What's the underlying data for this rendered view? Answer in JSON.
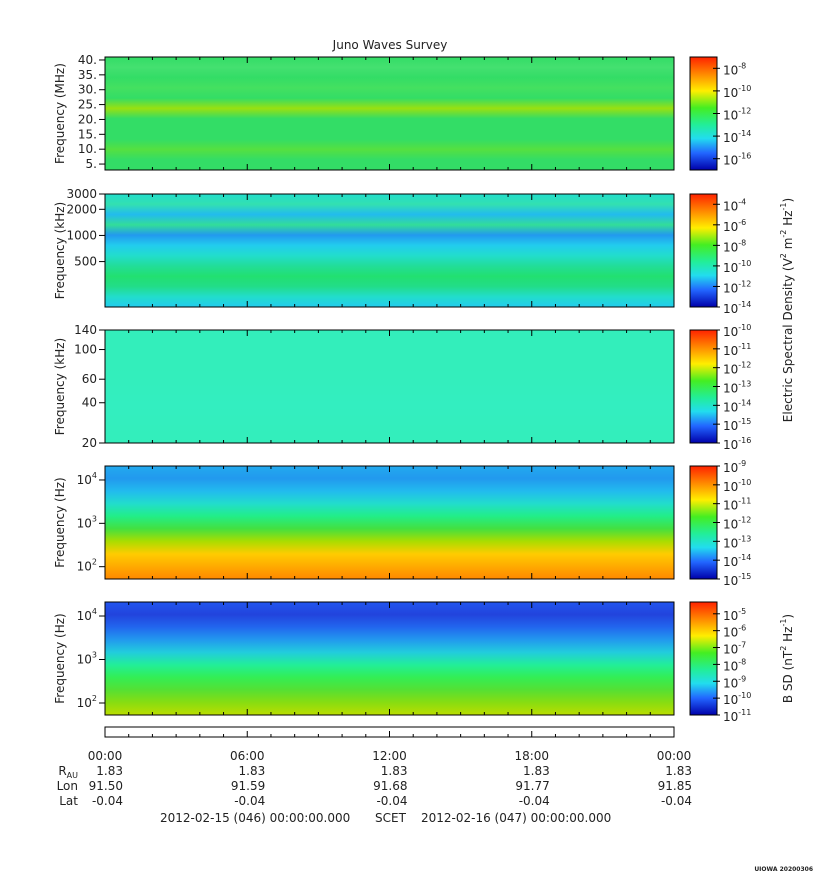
{
  "title": "Juno Waves Survey",
  "chart_data": [
    {
      "type": "spectrogram",
      "ylabel": "Frequency (MHz)",
      "ylim": [
        3,
        41
      ],
      "log": false,
      "yticks": [
        {
          "value": 5,
          "label": "5."
        },
        {
          "value": 10,
          "label": "10."
        },
        {
          "value": 15,
          "label": "15."
        },
        {
          "value": 20,
          "label": "20."
        },
        {
          "value": 25,
          "label": "25."
        },
        {
          "value": 30,
          "label": "30."
        },
        {
          "value": 35,
          "label": "35."
        },
        {
          "value": 40,
          "label": "40."
        }
      ],
      "colors": [
        "#33dd66",
        "#44e070",
        "#33dd66",
        "#44e060",
        "#33dd66",
        "#99e010",
        "#33dd66",
        "#33dd66",
        "#33dd66",
        "#55e040",
        "#33dd66",
        "#33dd66"
      ],
      "clim": [
        1e-17,
        1e-07
      ],
      "cticks": [
        {
          "value": 1e-08,
          "label": "10^-8"
        },
        {
          "value": 1e-10,
          "label": "10^-10"
        },
        {
          "value": 1e-12,
          "label": "10^-12"
        },
        {
          "value": 1e-14,
          "label": "10^-14"
        },
        {
          "value": 1e-16,
          "label": "10^-16"
        }
      ]
    },
    {
      "type": "spectrogram",
      "ylabel": "Frequency (kHz)",
      "ylim": [
        150,
        3000
      ],
      "log": true,
      "yticks": [
        {
          "value": 3000,
          "label": "3000"
        },
        {
          "value": 2000,
          "label": "2000"
        },
        {
          "value": 1000,
          "label": "1000"
        },
        500
      ],
      "colors": [
        "#22ddcc",
        "#33e0b0",
        "#22bbee",
        "#33dd99",
        "#2299ee",
        "#22ccee",
        "#22ddcc",
        "#22dd99",
        "#22e070",
        "#22dd88",
        "#22ddcc",
        "#22ccee"
      ],
      "clim": [
        1e-14,
        0.001
      ],
      "cticks": [
        {
          "value": 0.0001,
          "label": "10^-4"
        },
        {
          "value": 1e-06,
          "label": "10^-6"
        },
        {
          "value": 1e-08,
          "label": "10^-8"
        },
        {
          "value": 1e-10,
          "label": "10^-10"
        },
        {
          "value": 1e-12,
          "label": "10^-12"
        },
        {
          "value": 1e-14,
          "label": "10^-14"
        }
      ],
      "colorbar_label": "Electric Spectral Density (V^2 m^-2 Hz^-1)"
    },
    {
      "type": "spectrogram",
      "ylabel": "Frequency (kHz)",
      "ylim": [
        20,
        140
      ],
      "log": true,
      "yticks": [
        140,
        100,
        60,
        40,
        20
      ],
      "colors": [
        "#33eebb",
        "#33eebb",
        "#33eec0",
        "#33eebb"
      ],
      "clim": [
        1e-16,
        1e-10
      ],
      "cticks": [
        {
          "value": 1e-10,
          "label": "10^-10"
        },
        {
          "value": 1e-11,
          "label": "10^-11"
        },
        {
          "value": 1e-12,
          "label": "10^-12"
        },
        {
          "value": 1e-13,
          "label": "10^-13"
        },
        {
          "value": 1e-14,
          "label": "10^-14"
        },
        {
          "value": 1e-15,
          "label": "10^-15"
        },
        {
          "value": 1e-16,
          "label": "10^-16"
        }
      ]
    },
    {
      "type": "spectrogram",
      "ylabel": "Frequency (Hz)",
      "ylim": [
        52,
        21000
      ],
      "log": true,
      "yticks": [
        {
          "value": 10000,
          "label": "10^4"
        },
        {
          "value": 1000,
          "label": "10^3"
        },
        {
          "value": 100,
          "label": "10^2"
        }
      ],
      "colors": [
        "#22aaee",
        "#2299ee",
        "#22bbee",
        "#22ddcc",
        "#22ee88",
        "#44e040",
        "#aadd00",
        "#ffcc00",
        "#ffaa00",
        "#ff8800"
      ],
      "clim": [
        1e-15,
        1e-09
      ],
      "cticks": [
        {
          "value": 1e-09,
          "label": "10^-9"
        },
        {
          "value": 1e-10,
          "label": "10^-10"
        },
        {
          "value": 1e-11,
          "label": "10^-11"
        },
        {
          "value": 1e-12,
          "label": "10^-12"
        },
        {
          "value": 1e-13,
          "label": "10^-13"
        },
        {
          "value": 1e-14,
          "label": "10^-14"
        },
        {
          "value": 1e-15,
          "label": "10^-15"
        }
      ]
    },
    {
      "type": "spectrogram",
      "ylabel": "Frequency (Hz)",
      "ylim": [
        53,
        21000
      ],
      "log": true,
      "yticks": [
        {
          "value": 10000,
          "label": "10^4"
        },
        {
          "value": 1000,
          "label": "10^3"
        },
        {
          "value": 100,
          "label": "10^2"
        }
      ],
      "colors": [
        "#2255ee",
        "#2244dd",
        "#2266ee",
        "#2299ee",
        "#22ccdd",
        "#22ee99",
        "#33ee55",
        "#55e033",
        "#88dd11",
        "#bbdd00"
      ],
      "clim": [
        1e-11,
        5e-05
      ],
      "cticks": [
        {
          "value": 1e-05,
          "label": "10^-5"
        },
        {
          "value": 1e-06,
          "label": "10^-6"
        },
        {
          "value": 1e-07,
          "label": "10^-7"
        },
        {
          "value": 1e-08,
          "label": "10^-8"
        },
        {
          "value": 1e-09,
          "label": "10^-9"
        },
        {
          "value": 1e-10,
          "label": "10^-10"
        },
        {
          "value": 1e-11,
          "label": "10^-11"
        }
      ],
      "colorbar_label": "B SD (nT^2 Hz^-1)"
    }
  ],
  "time_axis": {
    "xticks": [
      "00:00",
      "06:00",
      "12:00",
      "18:00",
      "00:00"
    ],
    "rows": [
      {
        "label": "R_AU",
        "values": [
          "1.83",
          "1.83",
          "1.83",
          "1.83",
          "1.83"
        ]
      },
      {
        "label": "Lon",
        "values": [
          "91.50",
          "91.59",
          "91.68",
          "91.77",
          "91.85"
        ]
      },
      {
        "label": "Lat",
        "values": [
          "-0.04",
          "-0.04",
          "-0.04",
          "-0.04",
          "-0.04"
        ]
      }
    ]
  },
  "footer": {
    "start": "2012-02-15 (046) 00:00:00.000",
    "scet": "SCET",
    "end": "2012-02-16 (047) 00:00:00.000"
  },
  "stamp": "UIOWA 20200306"
}
